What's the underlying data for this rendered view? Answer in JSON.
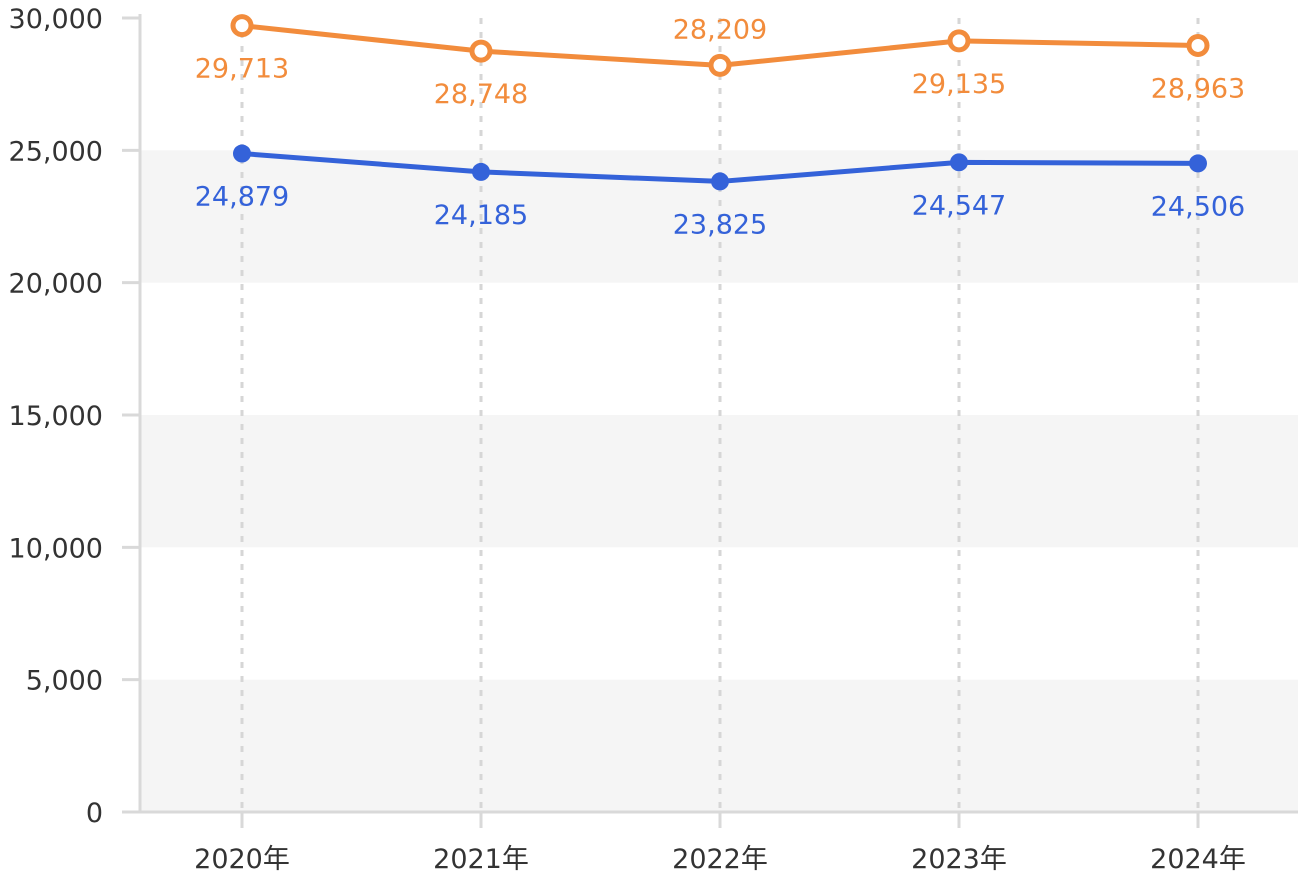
{
  "chart_data": {
    "type": "line",
    "title": "",
    "xlabel": "",
    "ylabel": "",
    "categories": [
      "2020年",
      "2021年",
      "2022年",
      "2023年",
      "2024年"
    ],
    "ylim": [
      0,
      30000
    ],
    "yticks": [
      0,
      5000,
      10000,
      15000,
      20000,
      25000,
      30000
    ],
    "ytick_labels": [
      "0",
      "5,000",
      "10,000",
      "15,000",
      "20,000",
      "25,000",
      "30,000"
    ],
    "grid": "alternating horizontal bands, dashed vertical lines",
    "series": [
      {
        "color": "#F28C3C",
        "marker": "hollow-circle",
        "values": [
          29713,
          28748,
          28209,
          29135,
          28963
        ],
        "labels": [
          "29,713",
          "28,748",
          "28,209",
          "29,135",
          "28,963"
        ]
      },
      {
        "color": "#3462D9",
        "marker": "filled-circle",
        "values": [
          24879,
          24185,
          23825,
          24547,
          24506
        ],
        "labels": [
          "24,879",
          "24,185",
          "23,825",
          "24,547",
          "24,506"
        ]
      }
    ]
  }
}
